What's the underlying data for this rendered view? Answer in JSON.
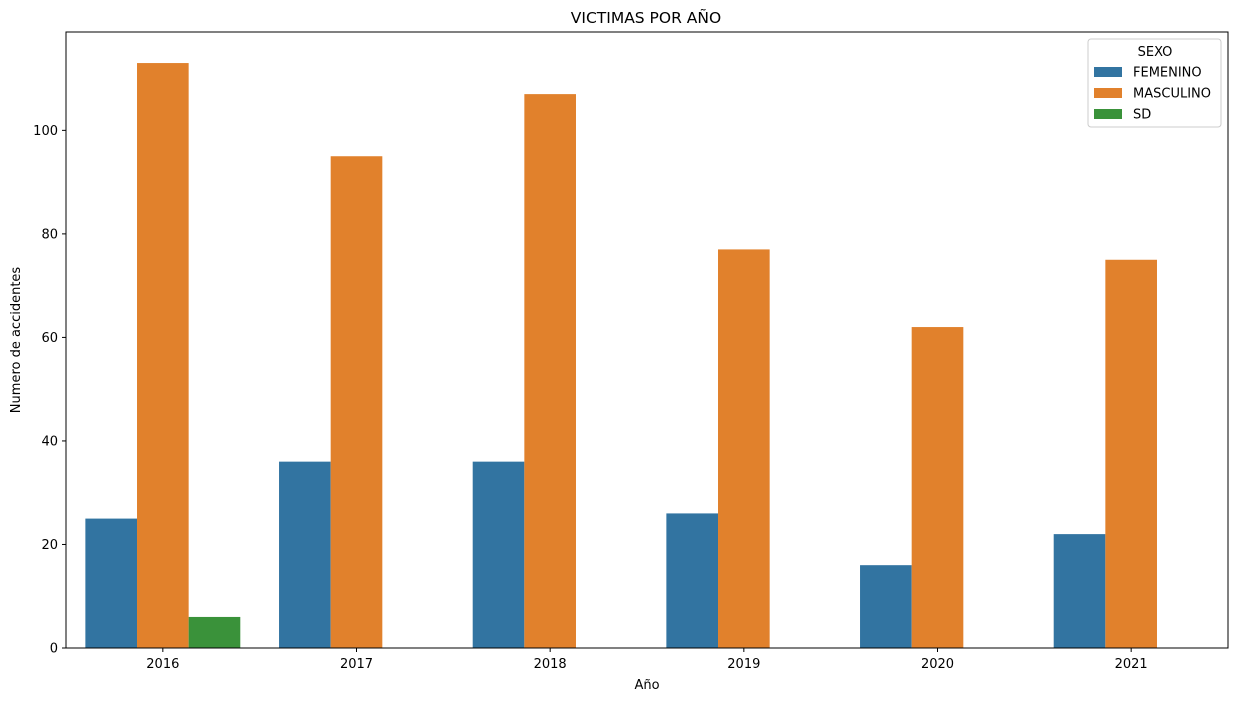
{
  "chart_data": {
    "type": "bar",
    "title": "VICTIMAS POR AÑO",
    "xlabel": "Año",
    "ylabel": "Numero de accidentes",
    "categories": [
      "2016",
      "2017",
      "2018",
      "2019",
      "2020",
      "2021"
    ],
    "series": [
      {
        "name": "FEMENINO",
        "color": "#3274a1",
        "values": [
          25,
          36,
          36,
          26,
          16,
          22
        ]
      },
      {
        "name": "MASCULINO",
        "color": "#e1812c",
        "values": [
          113,
          95,
          107,
          77,
          62,
          75
        ]
      },
      {
        "name": "SD",
        "color": "#3a923a",
        "values": [
          6,
          0,
          0,
          0,
          0,
          0
        ]
      }
    ],
    "ylim": [
      0,
      119
    ],
    "yticks": [
      0,
      20,
      40,
      60,
      80,
      100
    ],
    "grid": false,
    "legend": {
      "title": "SEXO",
      "placement": "top-right"
    }
  }
}
